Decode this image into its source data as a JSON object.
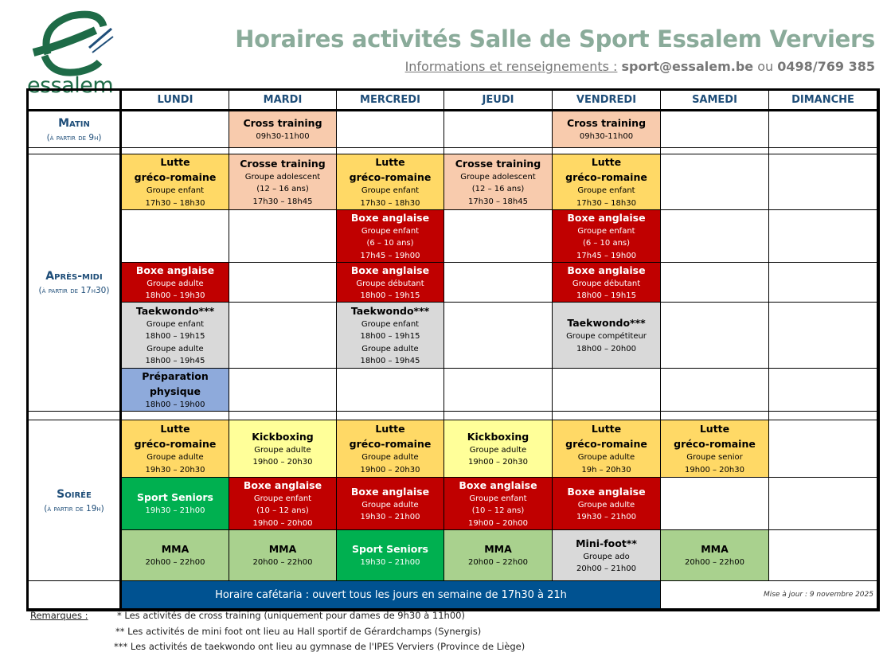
{
  "logo": {
    "text": "essalem"
  },
  "header": {
    "title": "Horaires activités Salle de Sport Essalem Verviers",
    "info_label": "Informations et renseignements :",
    "email": "sport@essalem.be",
    "or": "ou",
    "phone": "0498/769 385"
  },
  "days": [
    "LUNDI",
    "MARDI",
    "MERCREDI",
    "JEUDI",
    "VENDREDI",
    "SAMEDI",
    "DIMANCHE"
  ],
  "periods": [
    {
      "title": "Matin",
      "subtitle": "(à partir de 9h)"
    },
    {
      "title": "Après-midi",
      "subtitle": "(à partir de 17h30)"
    },
    {
      "title": "Soirée",
      "subtitle": "(à partir de 19h)"
    }
  ],
  "colors": {
    "cross": "#f8cbad",
    "lutte": "#ffd966",
    "boxe": "#c00000",
    "taekwondo": "#d9d9d9",
    "prep": "#8eaadb",
    "kick": "#ffff99",
    "seniors": "#00b050",
    "mma": "#a9d18e",
    "minifoot": "#d9d9d9",
    "cafe": "#005291"
  },
  "rows": [
    [
      null,
      {
        "title": [
          "Cross training"
        ],
        "sub": [
          "09h30-11h00"
        ],
        "type": "cross"
      },
      null,
      null,
      {
        "title": [
          "Cross training"
        ],
        "sub": [
          "09h30-11h00"
        ],
        "type": "cross"
      },
      null,
      null
    ],
    [
      {
        "title": [
          "Lutte",
          "gréco-romaine"
        ],
        "sub": [
          "Groupe enfant",
          "17h30 – 18h30"
        ],
        "type": "lutte"
      },
      {
        "title": [
          "Crosse training"
        ],
        "sub": [
          "Groupe adolescent",
          "(12 – 16 ans)",
          "17h30 – 18h45"
        ],
        "type": "cross"
      },
      {
        "title": [
          "Lutte",
          "gréco-romaine"
        ],
        "sub": [
          "Groupe enfant",
          "17h30 – 18h30"
        ],
        "type": "lutte"
      },
      {
        "title": [
          "Crosse training"
        ],
        "sub": [
          "Groupe adolescent",
          "(12 – 16 ans)",
          "17h30 – 18h45"
        ],
        "type": "cross"
      },
      {
        "title": [
          "Lutte",
          "gréco-romaine"
        ],
        "sub": [
          "Groupe enfant",
          "17h30 – 18h30"
        ],
        "type": "lutte"
      },
      null,
      null
    ],
    [
      null,
      null,
      {
        "title": [
          "Boxe anglaise"
        ],
        "sub": [
          "Groupe enfant",
          "(6 – 10 ans)",
          "17h45 – 19h00"
        ],
        "type": "boxe"
      },
      null,
      {
        "title": [
          "Boxe anglaise"
        ],
        "sub": [
          "Groupe enfant",
          "(6 – 10 ans)",
          "17h45 – 19h00"
        ],
        "type": "boxe"
      },
      null,
      null
    ],
    [
      {
        "title": [
          "Boxe anglaise"
        ],
        "sub": [
          "Groupe adulte",
          "18h00 – 19h30"
        ],
        "type": "boxe"
      },
      null,
      {
        "title": [
          "Boxe anglaise"
        ],
        "sub": [
          "Groupe débutant",
          "18h00 – 19h15"
        ],
        "type": "boxe"
      },
      null,
      {
        "title": [
          "Boxe anglaise"
        ],
        "sub": [
          "Groupe débutant",
          "18h00 – 19h15"
        ],
        "type": "boxe"
      },
      null,
      null
    ],
    [
      {
        "title": [
          "Taekwondo***"
        ],
        "sub": [
          "Groupe enfant",
          "18h00 – 19h15",
          "Groupe adulte",
          "18h00 – 19h45"
        ],
        "type": "taekwondo"
      },
      null,
      {
        "title": [
          "Taekwondo***"
        ],
        "sub": [
          "Groupe enfant",
          "18h00 – 19h15",
          "Groupe adulte",
          "18h00 – 19h45"
        ],
        "type": "taekwondo"
      },
      null,
      {
        "title": [
          "Taekwondo***"
        ],
        "sub": [
          "Groupe compétiteur",
          "18h00 – 20h00"
        ],
        "type": "taekwondo"
      },
      null,
      null
    ],
    [
      {
        "title": [
          "Préparation",
          "physique"
        ],
        "sub": [
          "18h00 – 19h00"
        ],
        "type": "prep"
      },
      null,
      null,
      null,
      null,
      null,
      null
    ],
    [
      {
        "title": [
          "Lutte",
          "gréco-romaine"
        ],
        "sub": [
          "Groupe adulte",
          "19h30 – 20h30"
        ],
        "type": "lutte"
      },
      {
        "title": [
          "Kickboxing"
        ],
        "sub": [
          "Groupe adulte",
          "19h00 – 20h30"
        ],
        "type": "kick"
      },
      {
        "title": [
          "Lutte",
          "gréco-romaine"
        ],
        "sub": [
          "Groupe adulte",
          "19h00 – 20h30"
        ],
        "type": "lutte"
      },
      {
        "title": [
          "Kickboxing"
        ],
        "sub": [
          "Groupe adulte",
          "19h00 – 20h30"
        ],
        "type": "kick"
      },
      {
        "title": [
          "Lutte",
          "gréco-romaine"
        ],
        "sub": [
          "Groupe adulte",
          "19h – 20h30"
        ],
        "type": "lutte"
      },
      {
        "title": [
          "Lutte",
          "gréco-romaine"
        ],
        "sub": [
          "Groupe senior",
          "19h00 – 20h30"
        ],
        "type": "lutte"
      },
      null
    ],
    [
      {
        "title": [
          "Sport Seniors"
        ],
        "sub": [
          "19h30 – 21h00"
        ],
        "type": "seniors"
      },
      {
        "title": [
          "Boxe anglaise"
        ],
        "sub": [
          "Groupe enfant",
          "(10 – 12 ans)",
          "19h00 – 20h00"
        ],
        "type": "boxe"
      },
      {
        "title": [
          "Boxe anglaise"
        ],
        "sub": [
          "Groupe adulte",
          "19h30 – 21h00"
        ],
        "type": "boxe"
      },
      {
        "title": [
          "Boxe anglaise"
        ],
        "sub": [
          "Groupe enfant",
          "(10 – 12 ans)",
          "19h00 – 20h00"
        ],
        "type": "boxe"
      },
      {
        "title": [
          "Boxe anglaise"
        ],
        "sub": [
          "Groupe adulte",
          "19h30 – 21h00"
        ],
        "type": "boxe"
      },
      null,
      null
    ],
    [
      {
        "title": [
          "MMA"
        ],
        "sub": [
          "20h00 – 22h00"
        ],
        "type": "mma"
      },
      {
        "title": [
          "MMA"
        ],
        "sub": [
          "20h00 – 22h00"
        ],
        "type": "mma"
      },
      {
        "title": [
          "Sport Seniors"
        ],
        "sub": [
          "19h30 – 21h00"
        ],
        "type": "seniors"
      },
      {
        "title": [
          "MMA"
        ],
        "sub": [
          "20h00 – 22h00"
        ],
        "type": "mma"
      },
      {
        "title": [
          "Mini-foot**"
        ],
        "sub": [
          "Groupe ado",
          "20h00 – 21h00"
        ],
        "type": "minifoot"
      },
      {
        "title": [
          "MMA"
        ],
        "sub": [
          "20h00 – 22h00"
        ],
        "type": "mma"
      },
      null
    ]
  ],
  "cafeteria": "Horaire cafétaria : ouvert tous les jours en semaine de 17h30 à 21h",
  "updated": "Mise à jour : 9 novembre 2025",
  "remarks": {
    "label": "Remarques :",
    "items": [
      "* Les activités de cross training (uniquement pour dames de 9h30 à 11h00)",
      "** Les activités de mini foot ont lieu au Hall sportif de Gérardchamps (Synergis)",
      "*** Les activités de taekwondo ont lieu au gymnase de l'IPES Verviers (Province de Liège)"
    ]
  }
}
